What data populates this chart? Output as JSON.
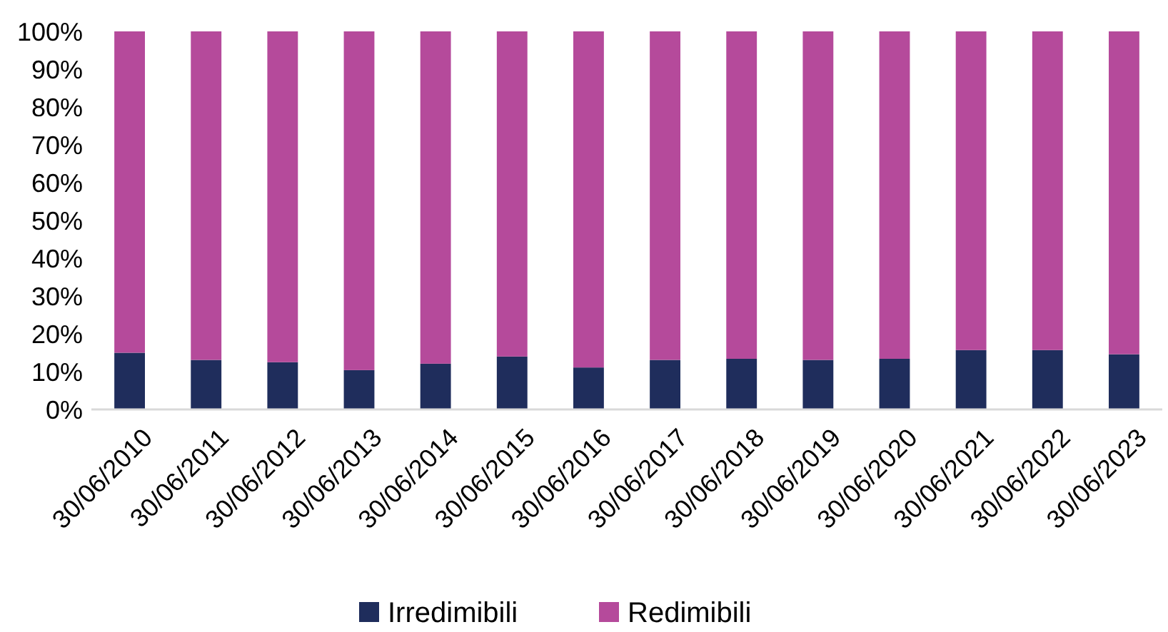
{
  "chart_data": {
    "type": "bar",
    "stacked": true,
    "categories": [
      "30/06/2010",
      "30/06/2011",
      "30/06/2012",
      "30/06/2013",
      "30/06/2014",
      "30/06/2015",
      "30/06/2016",
      "30/06/2017",
      "30/06/2018",
      "30/06/2019",
      "30/06/2020",
      "30/06/2021",
      "30/06/2022",
      "30/06/2023"
    ],
    "series": [
      {
        "name": "Irredimibili",
        "color": "#1f2d5c",
        "values": [
          15,
          13.1,
          12.5,
          10.4,
          12.1,
          14,
          11.1,
          13.1,
          13.4,
          13.1,
          13.4,
          15.7,
          15.7,
          14.6
        ]
      },
      {
        "name": "Redimibili",
        "color": "#b54a9b",
        "values": [
          85,
          86.9,
          87.5,
          89.6,
          87.9,
          86,
          88.9,
          86.9,
          86.6,
          86.9,
          86.6,
          84.3,
          84.3,
          85.4
        ]
      }
    ],
    "ylim": [
      0,
      100
    ],
    "yticks": [
      {
        "value": 0,
        "label": "0%"
      },
      {
        "value": 10,
        "label": "10%"
      },
      {
        "value": 20,
        "label": "20%"
      },
      {
        "value": 30,
        "label": "30%"
      },
      {
        "value": 40,
        "label": "40%"
      },
      {
        "value": 50,
        "label": "50%"
      },
      {
        "value": 60,
        "label": "60%"
      },
      {
        "value": 70,
        "label": "70%"
      },
      {
        "value": 80,
        "label": "80%"
      },
      {
        "value": 90,
        "label": "90%"
      },
      {
        "value": 100,
        "label": "100%"
      }
    ],
    "grid": false,
    "legend": "bottom"
  }
}
